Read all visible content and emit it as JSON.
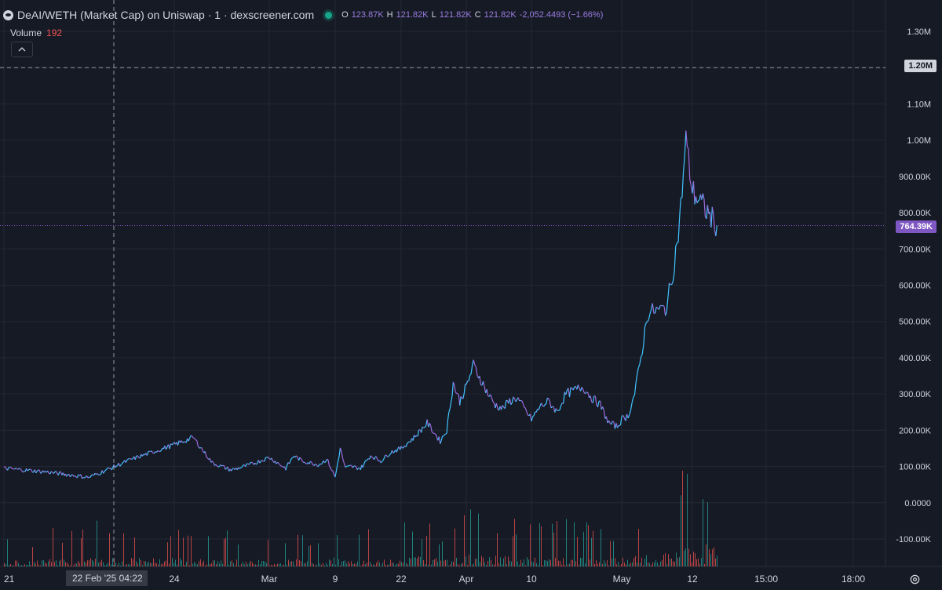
{
  "header": {
    "title": "DeAI/WETH (Market Cap) on Uniswap · 1 · dexscreener.com",
    "ohlc": {
      "o_label": "O",
      "o_value": "123.87K",
      "h_label": "H",
      "h_value": "121.82K",
      "l_label": "L",
      "l_value": "121.82K",
      "c_label": "C",
      "c_value": "121.82K",
      "change": "-2,052.4493 (−1.66%)"
    }
  },
  "volume_legend": {
    "label": "Volume",
    "value": "192"
  },
  "crosshair_price_label": "1.20M",
  "last_price_label": "764.39K",
  "crosshair_time_label": "22 Feb '25   04:22",
  "colors": {
    "background": "#161a25",
    "grid": "#242835",
    "line_up": "#40c4ff",
    "line_down": "#9c6ade",
    "volume_up": "#26a69a",
    "volume_down": "#ef5350",
    "last_price_tag": "#7e57c2",
    "axis_text": "#d1d4dc"
  },
  "chart_data": {
    "type": "line",
    "title": "DeAI/WETH (Market Cap) on Uniswap · 1 · dexscreener.com",
    "xlabel": "",
    "ylabel": "",
    "grid": true,
    "y_unit": "market cap",
    "ylim": [
      -150000,
      1350000
    ],
    "y_ticks": [
      -100000,
      0,
      100000,
      200000,
      300000,
      400000,
      500000,
      600000,
      700000,
      800000,
      900000,
      1000000,
      1100000,
      1200000,
      1300000
    ],
    "y_tick_labels": [
      "-100.00K",
      "0.0000",
      "100.00K",
      "200.00K",
      "300.00K",
      "400.00K",
      "500.00K",
      "600.00K",
      "700.00K",
      "800.00K",
      "900.00K",
      "1.00M",
      "1.10M",
      "1.20M",
      "1.30M"
    ],
    "x_range": [
      "2025-02-20",
      "2025-05-21"
    ],
    "x_ticks": [
      {
        "date": "2025-02-20",
        "label": "21"
      },
      {
        "date": "2025-02-24",
        "label": "24"
      },
      {
        "date": "2025-03-01",
        "label": "Mar"
      },
      {
        "date": "2025-03-09",
        "label": "9"
      },
      {
        "date": "2025-03-22",
        "label": "22"
      },
      {
        "date": "2025-04-01",
        "label": "Apr"
      },
      {
        "date": "2025-04-10",
        "label": "10"
      },
      {
        "date": "2025-05-01",
        "label": "May"
      },
      {
        "date": "2025-05-12",
        "label": "12"
      },
      {
        "date": "2025-05-15",
        "label": "15:00"
      },
      {
        "date": "2025-05-18",
        "label": "18:00"
      }
    ],
    "series": [
      {
        "x": [
          "2025-02-20",
          "2025-02-21",
          "2025-02-22",
          "2025-02-23",
          "2025-02-24",
          "2025-02-25",
          "2025-02-26",
          "2025-02-27",
          "2025-02-28",
          "2025-03-01",
          "2025-03-02",
          "2025-03-03",
          "2025-03-04",
          "2025-03-05",
          "2025-03-06",
          "2025-03-07",
          "2025-03-08",
          "2025-03-09",
          "2025-03-10",
          "2025-03-11",
          "2025-03-12",
          "2025-03-14",
          "2025-03-16",
          "2025-03-18",
          "2025-03-20",
          "2025-03-22",
          "2025-03-24",
          "2025-03-26",
          "2025-03-28",
          "2025-03-29",
          "2025-03-30",
          "2025-03-31",
          "2025-04-01",
          "2025-04-02",
          "2025-04-04",
          "2025-04-05",
          "2025-04-06",
          "2025-04-07",
          "2025-04-08",
          "2025-04-10",
          "2025-04-12",
          "2025-04-14",
          "2025-04-16",
          "2025-04-18",
          "2025-04-20",
          "2025-04-22",
          "2025-04-24",
          "2025-04-26",
          "2025-04-28",
          "2025-04-30",
          "2025-05-01",
          "2025-05-02",
          "2025-05-03",
          "2025-05-04",
          "2025-05-05",
          "2025-05-06",
          "2025-05-07",
          "2025-05-08",
          "2025-05-09",
          "2025-05-10",
          "2025-05-11",
          "2025-05-12",
          "2025-05-13"
        ],
        "values": [
          95000,
          85000,
          70000,
          120000,
          160000,
          180000,
          110000,
          90000,
          105000,
          125000,
          110000,
          95000,
          130000,
          115000,
          110000,
          105000,
          120000,
          70000,
          150000,
          95000,
          100000,
          95000,
          130000,
          115000,
          140000,
          150000,
          180000,
          220000,
          170000,
          200000,
          330000,
          280000,
          320000,
          380000,
          300000,
          270000,
          260000,
          280000,
          290000,
          230000,
          265000,
          280000,
          250000,
          300000,
          310000,
          320000,
          290000,
          270000,
          220000,
          210000,
          230000,
          240000,
          300000,
          400000,
          520000,
          530000,
          530000,
          540000,
          640000,
          770000,
          1000000,
          860000,
          764390
        ]
      }
    ],
    "volume_series": {
      "name": "Volume",
      "last_value": 192,
      "note_values_relative": true,
      "x": [
        "2025-02-20",
        "2025-02-22",
        "2025-02-25",
        "2025-02-28",
        "2025-03-03",
        "2025-03-06",
        "2025-03-09",
        "2025-03-12",
        "2025-03-16",
        "2025-03-20",
        "2025-03-24",
        "2025-03-28",
        "2025-04-01",
        "2025-04-05",
        "2025-04-10",
        "2025-04-15",
        "2025-04-20",
        "2025-04-25",
        "2025-04-30",
        "2025-05-04",
        "2025-05-08",
        "2025-05-10",
        "2025-05-11",
        "2025-05-12",
        "2025-05-13"
      ],
      "values": [
        0.18,
        0.3,
        0.28,
        0.2,
        0.25,
        0.2,
        0.3,
        0.18,
        0.28,
        0.22,
        0.35,
        0.25,
        0.4,
        0.35,
        0.3,
        0.32,
        0.3,
        0.28,
        0.3,
        0.35,
        0.45,
        0.5,
        1.0,
        0.9,
        0.6
      ]
    }
  }
}
